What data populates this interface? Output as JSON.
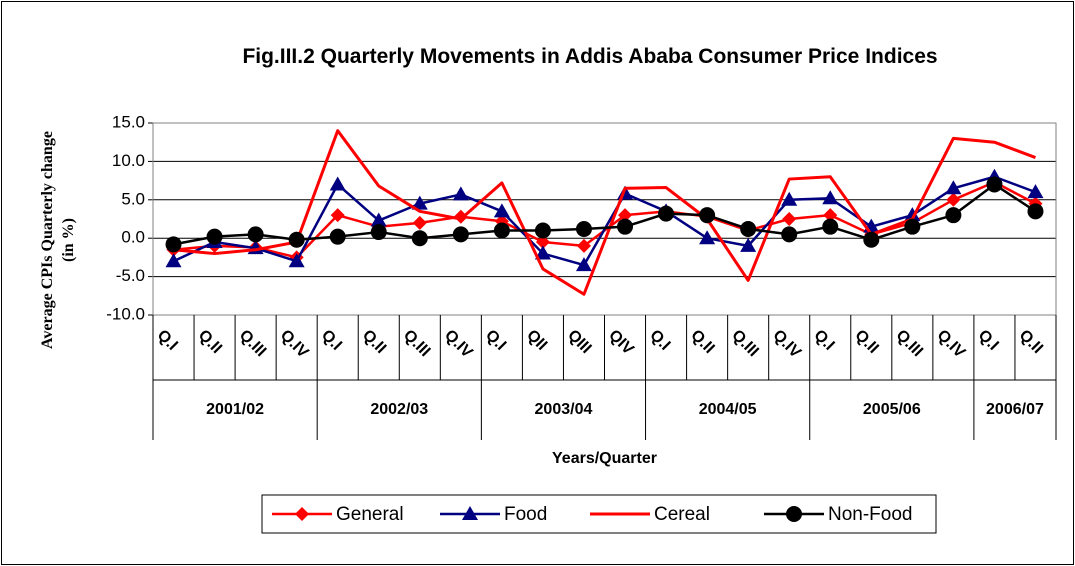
{
  "chart_data": {
    "type": "line",
    "title": "Fig.III.2 Quarterly Movements in Addis Ababa Consumer Price Indices",
    "y_label": "Average CPIs Quarterly change (in %)",
    "x_label": "Years/Quarter",
    "groups": [
      {
        "name": "2001/02",
        "categories": [
          "Q.I",
          "Q.II",
          "Q.III",
          "Q.IV"
        ]
      },
      {
        "name": "2002/03",
        "categories": [
          "Q.I",
          "Q.II",
          "Q.III",
          "Q.IV"
        ]
      },
      {
        "name": "2003/04",
        "categories": [
          "Q.I",
          "QII",
          "QIII",
          "QIV"
        ]
      },
      {
        "name": "2004/05",
        "categories": [
          "Q.I",
          "Q.II",
          "Q.III",
          "Q.IV"
        ]
      },
      {
        "name": "2005/06",
        "categories": [
          "Q.I",
          "Q.II",
          "Q.III",
          "Q.IV"
        ]
      },
      {
        "name": "2006/07",
        "categories": [
          "Q.I",
          "Q.II"
        ]
      }
    ],
    "series": [
      {
        "name": "General",
        "color": "#ff0000",
        "marker": "diamond",
        "values": [
          -1.5,
          -1.0,
          -1.2,
          -2.5,
          3.0,
          1.5,
          2.0,
          2.8,
          2.2,
          -0.5,
          -1.0,
          3.0,
          3.5,
          2.8,
          1.0,
          2.5,
          3.0,
          0.5,
          2.0,
          5.0,
          7.3,
          4.5
        ]
      },
      {
        "name": "Food",
        "color": "#000080",
        "marker": "triangle",
        "values": [
          -3.0,
          -0.5,
          -1.3,
          -3.0,
          7.0,
          2.3,
          4.5,
          5.7,
          3.5,
          -2.0,
          -3.5,
          5.8,
          3.5,
          0.0,
          -1.0,
          5.0,
          5.2,
          1.5,
          3.0,
          6.5,
          8.0,
          6.0
        ]
      },
      {
        "name": "Cereal",
        "color": "#ff0000",
        "marker": "none",
        "values": [
          -1.5,
          -2.0,
          -1.5,
          -0.5,
          14.0,
          6.8,
          3.5,
          2.5,
          7.2,
          -4.0,
          -7.3,
          6.5,
          6.6,
          2.5,
          -5.5,
          7.7,
          8.0,
          0.5,
          2.5,
          13.0,
          12.5,
          10.5
        ]
      },
      {
        "name": "Non-Food",
        "color": "#000000",
        "marker": "circle",
        "values": [
          -0.8,
          0.2,
          0.5,
          -0.2,
          0.2,
          0.8,
          0.0,
          0.5,
          1.0,
          1.0,
          1.2,
          1.5,
          3.2,
          3.0,
          1.2,
          0.5,
          1.5,
          -0.2,
          1.5,
          3.0,
          7.0,
          3.5
        ]
      }
    ],
    "ylim": [
      -10,
      15
    ],
    "yticks": [
      {
        "value": -10,
        "label": "-10.0"
      },
      {
        "value": -5,
        "label": "-5.0"
      },
      {
        "value": 0,
        "label": "0.0"
      },
      {
        "value": 5,
        "label": "5.0"
      },
      {
        "value": 10,
        "label": "10.0"
      },
      {
        "value": 15,
        "label": "15.0"
      }
    ],
    "grid": true,
    "legend": "bottom"
  }
}
